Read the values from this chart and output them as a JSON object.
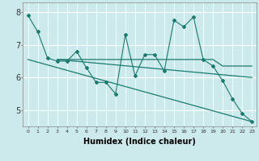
{
  "background_color": "#cce9eb",
  "grid_color": "#ffffff",
  "line_color": "#1a7a6e",
  "xlabel": "Humidex (Indice chaleur)",
  "xlabel_fontsize": 7,
  "xlim": [
    -0.5,
    23.5
  ],
  "ylim": [
    4.5,
    8.3
  ],
  "yticks": [
    5,
    6,
    7,
    8
  ],
  "ytick_fontsize": 7,
  "xtick_fontsize": 4.5,
  "xticks": [
    0,
    1,
    2,
    3,
    4,
    5,
    6,
    7,
    8,
    9,
    10,
    11,
    12,
    13,
    14,
    15,
    16,
    17,
    18,
    19,
    20,
    21,
    22,
    23
  ],
  "series": [
    {
      "x": [
        0,
        1,
        2,
        3,
        4,
        5,
        6,
        7,
        8,
        9,
        10,
        11,
        12,
        13,
        14,
        15,
        16,
        17,
        18,
        19,
        20,
        21,
        22,
        23
      ],
      "y": [
        7.9,
        7.4,
        6.6,
        6.5,
        6.5,
        6.8,
        6.3,
        5.85,
        5.85,
        5.5,
        7.3,
        6.05,
        6.7,
        6.7,
        6.2,
        7.75,
        7.55,
        7.85,
        6.55,
        6.35,
        5.9,
        5.35,
        4.9,
        4.65
      ],
      "marker": "D",
      "markersize": 2.0,
      "linewidth": 0.8,
      "has_marker": true
    },
    {
      "x": [
        3,
        19,
        20,
        23
      ],
      "y": [
        6.55,
        6.55,
        6.35,
        6.35
      ],
      "marker": null,
      "markersize": 0,
      "linewidth": 0.9,
      "has_marker": false
    },
    {
      "x": [
        0,
        23
      ],
      "y": [
        6.55,
        4.65
      ],
      "marker": null,
      "markersize": 0,
      "linewidth": 0.9,
      "has_marker": false
    },
    {
      "x": [
        3,
        23
      ],
      "y": [
        6.55,
        6.0
      ],
      "marker": null,
      "markersize": 0,
      "linewidth": 0.9,
      "has_marker": false
    }
  ]
}
